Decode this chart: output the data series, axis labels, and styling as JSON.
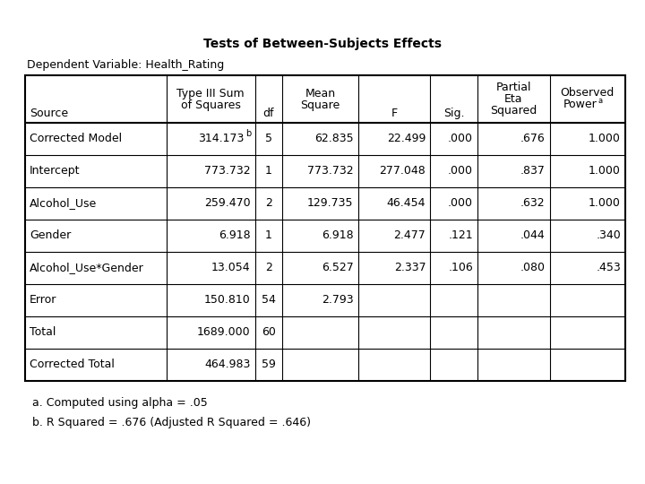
{
  "title": "Tests of Between-Subjects Effects",
  "dependent_var_label": "Dependent Variable: Health_Rating",
  "footnotes": [
    "a. Computed using alpha = .05",
    "b. R Squared = .676 (Adjusted R Squared = .646)"
  ],
  "rows": [
    [
      "Corrected Model",
      "314.173",
      "b",
      "5",
      "62.835",
      "22.499",
      ".000",
      ".676",
      "1.000"
    ],
    [
      "Intercept",
      "773.732",
      "",
      "1",
      "773.732",
      "277.048",
      ".000",
      ".837",
      "1.000"
    ],
    [
      "Alcohol_Use",
      "259.470",
      "",
      "2",
      "129.735",
      "46.454",
      ".000",
      ".632",
      "1.000"
    ],
    [
      "Gender",
      "6.918",
      "",
      "1",
      "6.918",
      "2.477",
      ".121",
      ".044",
      ".340"
    ],
    [
      "Alcohol_Use*Gender",
      "13.054",
      "",
      "2",
      "6.527",
      "2.337",
      ".106",
      ".080",
      ".453"
    ],
    [
      "Error",
      "150.810",
      "",
      "54",
      "2.793",
      "",
      "",
      "",
      ""
    ],
    [
      "Total",
      "1689.000",
      "",
      "60",
      "",
      "",
      "",
      "",
      ""
    ],
    [
      "Corrected Total",
      "464.983",
      "",
      "59",
      "",
      "",
      "",
      "",
      ""
    ]
  ],
  "bg_color": "#ffffff",
  "text_color": "#000000",
  "title_fontsize": 10,
  "body_fontsize": 9,
  "header_fontsize": 9
}
